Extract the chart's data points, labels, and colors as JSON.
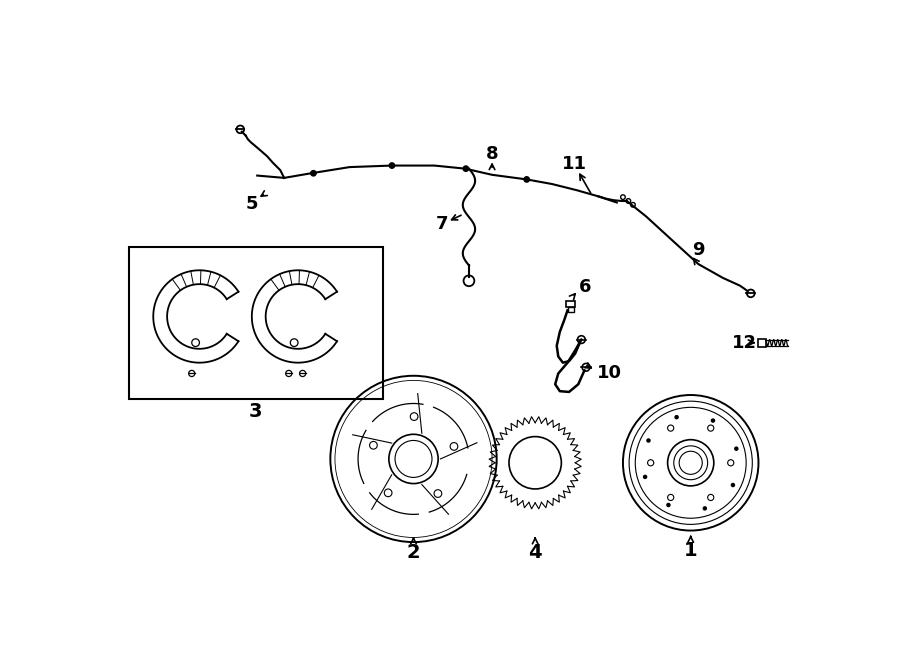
{
  "bg_color": "#ffffff",
  "line_color": "#000000",
  "figsize": [
    9.0,
    6.61
  ],
  "dpi": 100
}
